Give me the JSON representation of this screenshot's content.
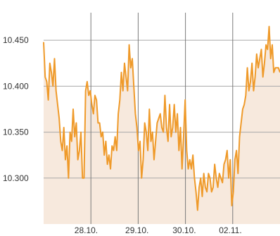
{
  "chart_data": {
    "type": "area",
    "y_ticks": [
      "10.450",
      "10.400",
      "10.350",
      "10.300"
    ],
    "y_tick_values": [
      10450,
      10400,
      10350,
      10300
    ],
    "x_ticks": [
      "28.10.",
      "29.10.",
      "30.10.",
      "02.11."
    ],
    "ylim": [
      10250,
      10480
    ],
    "grid": true,
    "legend": "none",
    "colors": {
      "line": "#ef9a2a",
      "fill": "#f7e9dd",
      "grid": "#8c8c8c"
    },
    "series": [
      {
        "values": [
          10448,
          10410,
          10405,
          10385,
          10425,
          10415,
          10400,
          10430,
          10395,
          10380,
          10365,
          10340,
          10330,
          10355,
          10320,
          10335,
          10300,
          10350,
          10340,
          10375,
          10345,
          10360,
          10320,
          10330,
          10350,
          10300,
          10300,
          10395,
          10405,
          10390,
          10395,
          10380,
          10370,
          10390,
          10385,
          10360,
          10360,
          10345,
          10350,
          10325,
          10340,
          10315,
          10325,
          10310,
          10335,
          10330,
          10345,
          10330,
          10370,
          10385,
          10415,
          10395,
          10425,
          10410,
          10395,
          10445,
          10420,
          10430,
          10400,
          10370,
          10355,
          10330,
          10340,
          10300,
          10320,
          10360,
          10350,
          10330,
          10375,
          10340,
          10350,
          10320,
          10340,
          10360,
          10365,
          10370,
          10355,
          10350,
          10390,
          10355,
          10340,
          10380,
          10345,
          10355,
          10380,
          10350,
          10370,
          10330,
          10355,
          10310,
          10345,
          10385,
          10330,
          10310,
          10320,
          10310,
          10325,
          10300,
          10285,
          10265,
          10290,
          10300,
          10280,
          10305,
          10290,
          10285,
          10305,
          10300,
          10285,
          10290,
          10315,
          10300,
          10290,
          10305,
          10300,
          10295,
          10315,
          10320,
          10330,
          10300,
          10320,
          10270,
          10285,
          10320,
          10330,
          10305,
          10345,
          10360,
          10375,
          10380,
          10390,
          10420,
          10395,
          10405,
          10425,
          10395,
          10410,
          10435,
          10420,
          10430,
          10440,
          10410,
          10425,
          10445,
          10440,
          10465,
          10430,
          10445,
          10415,
          10420,
          10420,
          10420,
          10415
        ]
      }
    ]
  }
}
